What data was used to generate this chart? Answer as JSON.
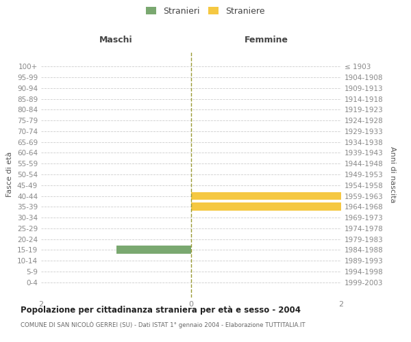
{
  "age_groups": [
    "100+",
    "95-99",
    "90-94",
    "85-89",
    "80-84",
    "75-79",
    "70-74",
    "65-69",
    "60-64",
    "55-59",
    "50-54",
    "45-49",
    "40-44",
    "35-39",
    "30-34",
    "25-29",
    "20-24",
    "15-19",
    "10-14",
    "5-9",
    "0-4"
  ],
  "birth_years": [
    "≤ 1903",
    "1904-1908",
    "1909-1913",
    "1914-1918",
    "1919-1923",
    "1924-1928",
    "1929-1933",
    "1934-1938",
    "1939-1943",
    "1944-1948",
    "1949-1953",
    "1954-1958",
    "1959-1963",
    "1964-1968",
    "1969-1973",
    "1974-1978",
    "1979-1983",
    "1984-1988",
    "1989-1993",
    "1994-1998",
    "1999-2003"
  ],
  "males": [
    0,
    0,
    0,
    0,
    0,
    0,
    0,
    0,
    0,
    0,
    0,
    0,
    0,
    0,
    0,
    0,
    0,
    1,
    0,
    0,
    0
  ],
  "females": [
    0,
    0,
    0,
    0,
    0,
    0,
    0,
    0,
    0,
    0,
    0,
    0,
    2,
    2,
    0,
    0,
    0,
    0,
    0,
    0,
    0
  ],
  "xlim": 2,
  "male_color": "#7aA870",
  "female_color": "#F5C842",
  "center_line_color": "#999933",
  "title": "Popolazione per cittadinanza straniera per età e sesso - 2004",
  "subtitle": "COMUNE DI SAN NICOLÒ GERREI (SU) - Dati ISTAT 1° gennaio 2004 - Elaborazione TUTTITALIA.IT",
  "ylabel_left": "Fasce di età",
  "ylabel_right": "Anni di nascita",
  "maschi_label": "Maschi",
  "femmine_label": "Femmine",
  "legend_stranieri": "Stranieri",
  "legend_straniere": "Straniere",
  "bg_color": "#ffffff",
  "grid_color": "#cccccc",
  "axis_color": "#aaaaaa",
  "tick_color": "#888888",
  "bar_height": 0.75
}
